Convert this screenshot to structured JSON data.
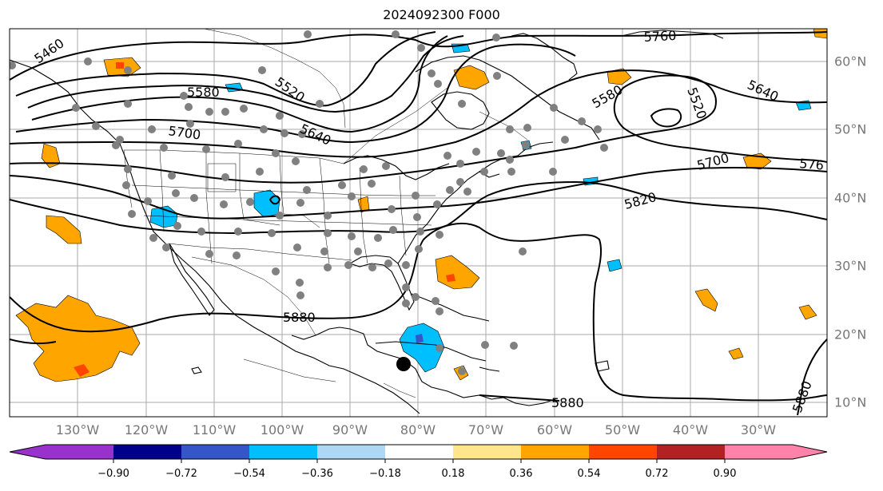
{
  "title": "2024092300 F000",
  "lon_labels": [
    "130°W",
    "120°W",
    "110°W",
    "100°W",
    "90°W",
    "80°W",
    "70°W",
    "60°W",
    "50°W",
    "40°W",
    "30°W"
  ],
  "lat_labels": [
    "60°N",
    "50°N",
    "40°N",
    "30°N",
    "20°N",
    "10°N"
  ],
  "contour_labels": [
    "5460",
    "5580",
    "5520",
    "5700",
    "5640",
    "5760",
    "5580",
    "5520",
    "5640",
    "5700",
    "576",
    "5820",
    "5880",
    "5880",
    "5880"
  ],
  "colorbar": {
    "tick_labels": [
      "−0.90",
      "−0.72",
      "−0.54",
      "−0.36",
      "−0.18",
      "0.18",
      "0.36",
      "0.54",
      "0.72",
      "0.90"
    ],
    "colors": [
      "#9932cc",
      "#00008b",
      "#3456c8",
      "#00bfff",
      "#add8f5",
      "#ffffff",
      "#ffe68a",
      "#ffa500",
      "#ff4500",
      "#b22222",
      "#ff82ab"
    ]
  },
  "marker": "storm-center-dot"
}
